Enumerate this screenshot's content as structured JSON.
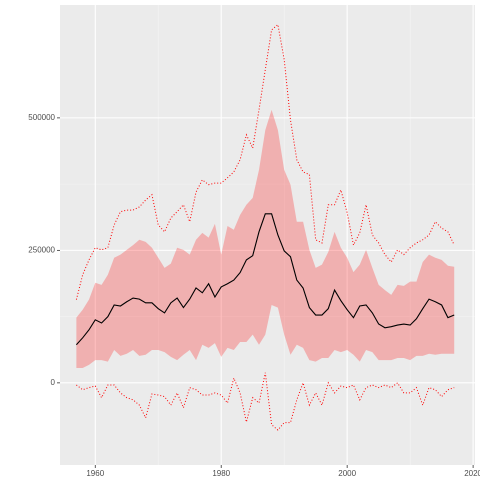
{
  "chart_data": {
    "type": "line",
    "x": [
      1957,
      1958,
      1959,
      1960,
      1961,
      1962,
      1963,
      1964,
      1965,
      1966,
      1967,
      1968,
      1969,
      1970,
      1971,
      1972,
      1973,
      1974,
      1975,
      1976,
      1977,
      1978,
      1979,
      1980,
      1981,
      1982,
      1983,
      1984,
      1985,
      1986,
      1987,
      1988,
      1989,
      1990,
      1991,
      1992,
      1993,
      1994,
      1995,
      1996,
      1997,
      1998,
      1999,
      2000,
      2001,
      2002,
      2003,
      2004,
      2005,
      2006,
      2007,
      2008,
      2009,
      2010,
      2011,
      2012,
      2013,
      2014,
      2015,
      2016,
      2017
    ],
    "xlim": [
      1954.4,
      2020.3
    ],
    "xticks": [
      1960,
      1980,
      2000,
      2020
    ],
    "ylim": [
      -155000,
      713000
    ],
    "yticks": [
      0,
      250000,
      500000
    ],
    "grid": true,
    "ribbon": {
      "color": "#ff0000",
      "upper": [
        123000,
        138000,
        157000,
        189000,
        185000,
        204000,
        236000,
        242000,
        251000,
        260000,
        270000,
        266000,
        255000,
        236000,
        217000,
        225000,
        255000,
        251000,
        242000,
        270000,
        283000,
        274000,
        300000,
        242000,
        296000,
        289000,
        317000,
        336000,
        349000,
        402000,
        477000,
        515000,
        477000,
        402000,
        374000,
        304000,
        304000,
        251000,
        217000,
        223000,
        247000,
        285000,
        255000,
        236000,
        209000,
        223000,
        251000,
        217000,
        185000,
        175000,
        166000,
        185000,
        183000,
        191000,
        191000,
        228000,
        242000,
        236000,
        232000,
        221000,
        219000
      ],
      "lower": [
        28000,
        28000,
        34000,
        43000,
        43000,
        40000,
        62000,
        51000,
        55000,
        62000,
        51000,
        53000,
        62000,
        62000,
        58000,
        49000,
        43000,
        53000,
        62000,
        43000,
        72000,
        66000,
        75000,
        49000,
        66000,
        62000,
        77000,
        77000,
        91000,
        72000,
        91000,
        147000,
        142000,
        91000,
        53000,
        72000,
        66000,
        43000,
        40000,
        47000,
        47000,
        62000,
        58000,
        62000,
        53000,
        40000,
        62000,
        58000,
        43000,
        43000,
        43000,
        47000,
        47000,
        43000,
        51000,
        51000,
        55000,
        53000,
        55000,
        55000,
        55000
      ]
    },
    "series": [
      {
        "color": "#000000",
        "style": "solid",
        "values": [
          72000,
          85000,
          100000,
          119000,
          113000,
          125000,
          147000,
          145000,
          153000,
          160000,
          158000,
          151000,
          151000,
          140000,
          132000,
          151000,
          160000,
          142000,
          158000,
          179000,
          170000,
          187000,
          162000,
          181000,
          187000,
          194000,
          208000,
          232000,
          240000,
          285000,
          319000,
          319000,
          279000,
          249000,
          238000,
          194000,
          179000,
          142000,
          128000,
          128000,
          140000,
          175000,
          155000,
          138000,
          123000,
          145000,
          147000,
          132000,
          111000,
          104000,
          106000,
          109000,
          111000,
          109000,
          121000,
          140000,
          158000,
          153000,
          147000,
          123000,
          128000
        ]
      },
      {
        "color": "#ff0000",
        "style": "dotted",
        "values": [
          157000,
          204000,
          232000,
          255000,
          251000,
          255000,
          298000,
          323000,
          326000,
          326000,
          332000,
          345000,
          355000,
          298000,
          285000,
          311000,
          323000,
          336000,
          304000,
          360000,
          383000,
          374000,
          377000,
          377000,
          387000,
          398000,
          421000,
          468000,
          443000,
          515000,
          591000,
          666000,
          676000,
          610000,
          496000,
          421000,
          398000,
          393000,
          270000,
          264000,
          336000,
          336000,
          364000,
          321000,
          260000,
          283000,
          336000,
          279000,
          264000,
          242000,
          228000,
          251000,
          242000,
          255000,
          264000,
          270000,
          279000,
          304000,
          292000,
          285000,
          260000
        ]
      },
      {
        "color": "#ff0000",
        "style": "dotted",
        "values": [
          -4000,
          -13000,
          -9000,
          -6000,
          -28000,
          -4000,
          -4000,
          -19000,
          -28000,
          -32000,
          -42000,
          -66000,
          -21000,
          -23000,
          -26000,
          -42000,
          -19000,
          -47000,
          -9000,
          -13000,
          -23000,
          -23000,
          -19000,
          -23000,
          -38000,
          9000,
          -19000,
          -74000,
          -28000,
          -38000,
          19000,
          -79000,
          -89000,
          -75000,
          -75000,
          -32000,
          0,
          -42000,
          -19000,
          -42000,
          0,
          -19000,
          -6000,
          -9000,
          -4000,
          -32000,
          -9000,
          -4000,
          -9000,
          -4000,
          -9000,
          0,
          -19000,
          -19000,
          -9000,
          -42000,
          -9000,
          -13000,
          -26000,
          -13000,
          -9000
        ]
      }
    ]
  }
}
